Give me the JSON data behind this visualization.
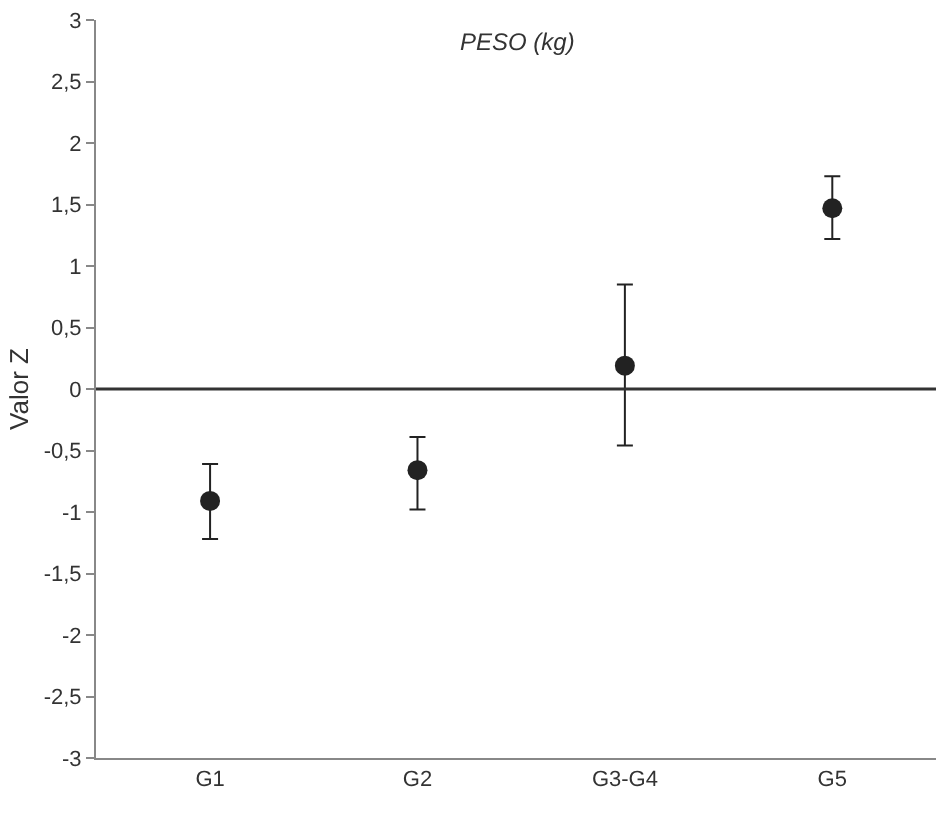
{
  "chart_data": {
    "type": "scatter",
    "title": "PESO (kg)",
    "ylabel": "Valor Z",
    "categories": [
      "G1",
      "G2",
      "G3-G4",
      "G5"
    ],
    "series": [
      {
        "color": "#222222",
        "values": [
          -0.91,
          -0.66,
          0.19,
          1.47
        ],
        "errors": [
          [
            -1.22,
            -0.61
          ],
          [
            -0.98,
            -0.39
          ],
          [
            -0.46,
            0.85
          ],
          [
            1.22,
            1.73
          ]
        ]
      }
    ],
    "ylim": [
      -3,
      3
    ],
    "yticks": [
      {
        "value": -3,
        "label": "-3"
      },
      {
        "value": -2.5,
        "label": "-2,5"
      },
      {
        "value": -2,
        "label": "-2"
      },
      {
        "value": -1.5,
        "label": "-1,5"
      },
      {
        "value": -1,
        "label": "-1"
      },
      {
        "value": -0.5,
        "label": "-0,5"
      },
      {
        "value": 0,
        "label": "0"
      },
      {
        "value": 0.5,
        "label": "0,5"
      },
      {
        "value": 1,
        "label": "1"
      },
      {
        "value": 1.5,
        "label": "1,5"
      },
      {
        "value": 2,
        "label": "2"
      },
      {
        "value": 2.5,
        "label": "2,5"
      },
      {
        "value": 3,
        "label": "3"
      }
    ],
    "ref_lines": [
      {
        "axis": "y",
        "value": 0,
        "color": "#333333"
      }
    ],
    "marker": "circle"
  }
}
